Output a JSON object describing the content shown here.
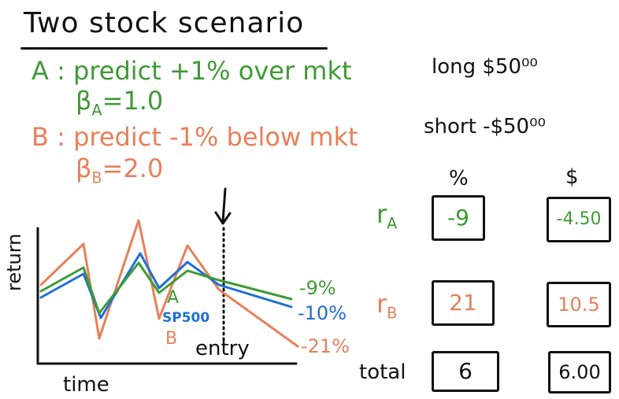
{
  "title": "Two stock scenario",
  "stock_a": {
    "line": "A : predict +1% over mkt",
    "beta_symbol": "β",
    "beta_sub": "A",
    "beta_value": "=1.0"
  },
  "stock_b": {
    "line": "B : predict -1% below mkt",
    "beta_symbol": "β",
    "beta_sub": "B",
    "beta_value": "=2.0"
  },
  "positions": {
    "long": "long $50⁰⁰",
    "short": "short -$50⁰⁰"
  },
  "table": {
    "col_percent": "%",
    "col_dollar": "$",
    "rows": [
      {
        "label_main": "r",
        "label_sub": "A",
        "percent": "-9",
        "dollar": "-4.50",
        "color": "#3f9a35"
      },
      {
        "label_main": "r",
        "label_sub": "B",
        "percent": "21",
        "dollar": "10.5",
        "color": "#e8805a"
      },
      {
        "label_main": "total",
        "label_sub": "",
        "percent": "6",
        "dollar": "6.00",
        "color": "#111111"
      }
    ]
  },
  "graph": {
    "y_label": "return",
    "x_label": "time",
    "entry_label": "entry",
    "label_a": "A",
    "label_sp": "SP500",
    "label_b": "B",
    "end_a": "-9%",
    "end_sp": "-10%",
    "end_b": "-21%",
    "colors": {
      "a": "#3f9a35",
      "sp": "#1e6fd6",
      "b": "#e8805a",
      "axis": "#111111"
    }
  }
}
